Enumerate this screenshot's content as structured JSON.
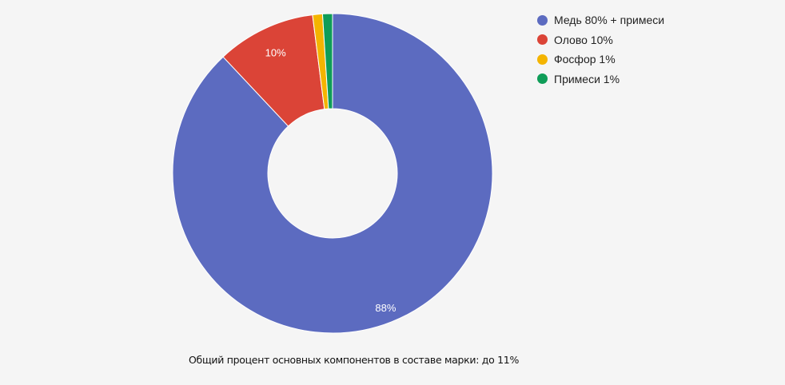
{
  "chart_data": {
    "type": "pie",
    "donut": true,
    "categories": [
      "Медь 80% + примеси",
      "Олово 10%",
      "Фосфор 1%",
      "Примеси 1%"
    ],
    "values": [
      88,
      10,
      1,
      1
    ],
    "data_labels": [
      "88%",
      "10%",
      "",
      ""
    ],
    "colors": [
      "#5c6bc0",
      "#db4437",
      "#f4b400",
      "#0f9d58"
    ],
    "legend_placement": "top-right",
    "caption": "Общий процент основных компонентов в составе марки: до 11%"
  }
}
